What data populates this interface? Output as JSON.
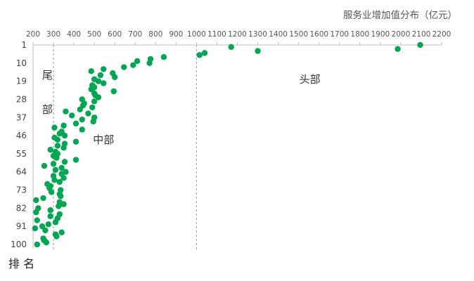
{
  "chart_data": {
    "type": "scatter",
    "xlabel": "服务业增加值分布（亿元）",
    "ylabel": "排 名",
    "x_axis_position": "top",
    "y_axis_inverted": true,
    "xlim": [
      200,
      2200
    ],
    "xticks": [
      200,
      300,
      400,
      500,
      600,
      700,
      800,
      900,
      1000,
      1100,
      1200,
      1300,
      1400,
      1500,
      1600,
      1700,
      1800,
      1900,
      2000,
      2100,
      2200
    ],
    "ylim": [
      1,
      100
    ],
    "yticks": [
      1,
      10,
      19,
      28,
      37,
      46,
      55,
      64,
      73,
      82,
      91,
      100
    ],
    "grid": false,
    "point_color": "#00a651",
    "divider_color": "#999999",
    "dividers": [
      {
        "x": 300,
        "style": "dashed"
      },
      {
        "x": 1000,
        "style": "dashed"
      }
    ],
    "region_labels": [
      {
        "text": "尾",
        "x": 270,
        "y": 16
      },
      {
        "text": "部",
        "x": 270,
        "y": 33
      },
      {
        "text": "中部",
        "x": 545,
        "y": 48
      },
      {
        "text": "头部",
        "x": 1555,
        "y": 18
      }
    ],
    "points": [
      [
        2095,
        1
      ],
      [
        1170,
        2
      ],
      [
        1985,
        3
      ],
      [
        1300,
        4
      ],
      [
        1040,
        5
      ],
      [
        1015,
        6
      ],
      [
        840,
        7
      ],
      [
        775,
        8
      ],
      [
        710,
        9
      ],
      [
        770,
        10
      ],
      [
        690,
        11
      ],
      [
        645,
        12
      ],
      [
        545,
        13
      ],
      [
        485,
        14
      ],
      [
        590,
        15
      ],
      [
        530,
        16
      ],
      [
        600,
        17
      ],
      [
        500,
        18
      ],
      [
        520,
        19
      ],
      [
        545,
        20
      ],
      [
        490,
        21
      ],
      [
        500,
        22
      ],
      [
        485,
        23
      ],
      [
        595,
        24
      ],
      [
        500,
        25
      ],
      [
        505,
        26
      ],
      [
        520,
        27
      ],
      [
        440,
        28
      ],
      [
        500,
        29
      ],
      [
        450,
        30
      ],
      [
        445,
        31
      ],
      [
        490,
        32
      ],
      [
        430,
        33
      ],
      [
        360,
        34
      ],
      [
        470,
        35
      ],
      [
        390,
        36
      ],
      [
        500,
        37
      ],
      [
        440,
        38
      ],
      [
        495,
        39
      ],
      [
        410,
        40
      ],
      [
        350,
        41
      ],
      [
        305,
        42
      ],
      [
        440,
        43
      ],
      [
        340,
        44
      ],
      [
        330,
        45
      ],
      [
        355,
        46
      ],
      [
        305,
        47
      ],
      [
        320,
        48
      ],
      [
        410,
        49
      ],
      [
        355,
        50
      ],
      [
        320,
        51
      ],
      [
        350,
        52
      ],
      [
        285,
        53
      ],
      [
        310,
        54
      ],
      [
        320,
        55
      ],
      [
        300,
        56
      ],
      [
        315,
        57
      ],
      [
        410,
        58
      ],
      [
        355,
        59
      ],
      [
        300,
        60
      ],
      [
        255,
        61
      ],
      [
        340,
        62
      ],
      [
        310,
        63
      ],
      [
        360,
        64
      ],
      [
        340,
        65
      ],
      [
        300,
        66
      ],
      [
        350,
        67
      ],
      [
        305,
        68
      ],
      [
        330,
        69
      ],
      [
        270,
        70
      ],
      [
        285,
        71
      ],
      [
        280,
        72
      ],
      [
        335,
        73
      ],
      [
        290,
        74
      ],
      [
        330,
        75
      ],
      [
        335,
        76
      ],
      [
        250,
        77
      ],
      [
        215,
        78
      ],
      [
        330,
        79
      ],
      [
        350,
        80
      ],
      [
        325,
        81
      ],
      [
        225,
        82
      ],
      [
        285,
        83
      ],
      [
        215,
        84
      ],
      [
        330,
        85
      ],
      [
        285,
        86
      ],
      [
        320,
        87
      ],
      [
        220,
        88
      ],
      [
        310,
        89
      ],
      [
        275,
        90
      ],
      [
        245,
        91
      ],
      [
        210,
        92
      ],
      [
        260,
        93
      ],
      [
        340,
        94
      ],
      [
        310,
        95
      ],
      [
        315,
        96
      ],
      [
        250,
        97
      ],
      [
        255,
        98
      ],
      [
        265,
        99
      ],
      [
        220,
        100
      ]
    ]
  }
}
